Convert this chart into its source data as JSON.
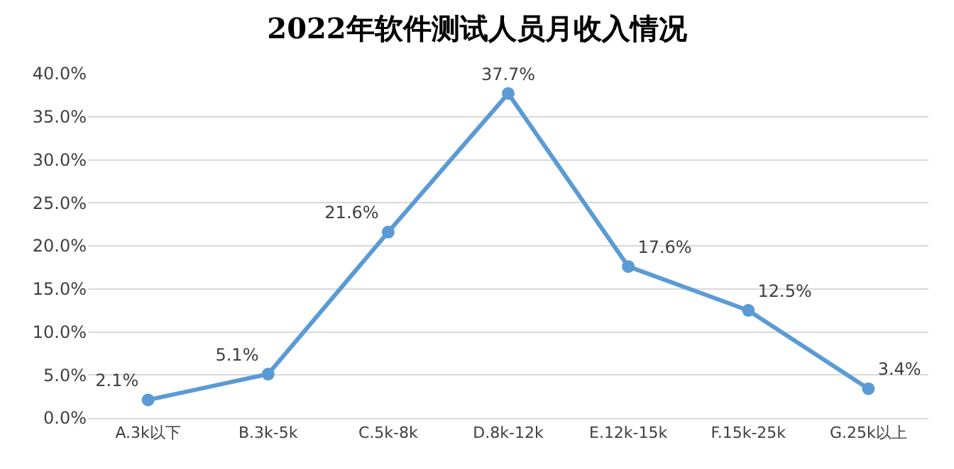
{
  "chart_data": {
    "type": "line",
    "title": "2022年软件测试人员月收入情况",
    "categories": [
      "A.3k以下",
      "B.3k-5k",
      "C.5k-8k",
      "D.8k-12k",
      "E.12k-15k",
      "F.15k-25k",
      "G.25k以上"
    ],
    "values": [
      2.1,
      5.1,
      21.6,
      37.7,
      17.6,
      12.5,
      3.4
    ],
    "value_labels": [
      "2.1%",
      "5.1%",
      "21.6%",
      "37.7%",
      "17.6%",
      "12.5%",
      "3.4%"
    ],
    "color": "#5b9bd5",
    "marker": "circle",
    "line_style": "solid",
    "ylim": [
      0,
      40
    ],
    "yticks": [
      {
        "value": 0,
        "label": "0.0%"
      },
      {
        "value": 5,
        "label": "5.0%"
      },
      {
        "value": 10,
        "label": "10.0%"
      },
      {
        "value": 15,
        "label": "15.0%"
      },
      {
        "value": 20,
        "label": "20.0%"
      },
      {
        "value": 25,
        "label": "25.0%"
      },
      {
        "value": 30,
        "label": "30.0%"
      },
      {
        "value": 35,
        "label": "35.0%"
      },
      {
        "value": 40,
        "label": "40.0%"
      }
    ],
    "grid": "y",
    "legend": false
  }
}
